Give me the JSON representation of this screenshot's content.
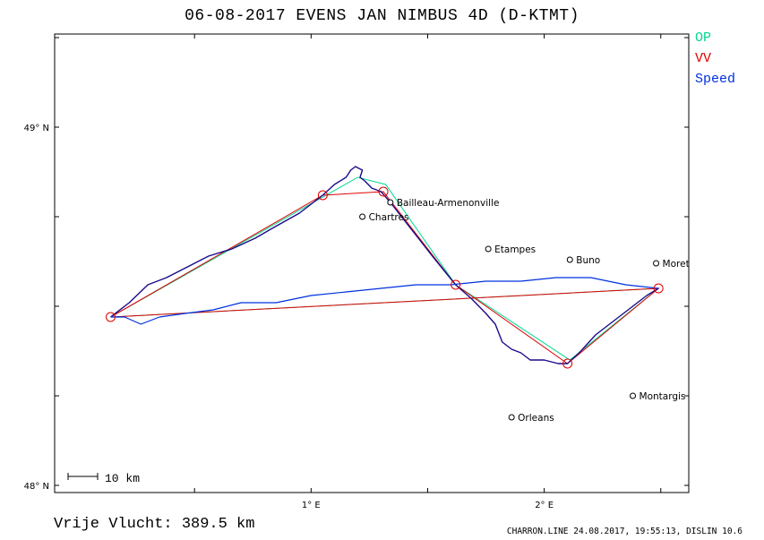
{
  "header": {
    "title": "06-08-2017   EVENS JAN   NIMBUS 4D (D-KTMT)"
  },
  "footer": {
    "distance": "Vrije Vlucht:  389.5 km",
    "credit": "CHARRON.LINE 24.08.2017, 19:55:13, DISLIN 10.6"
  },
  "colors": {
    "op": "#00d890",
    "vv": "#e00000",
    "speed": "#0030e0",
    "track": "#1a0a8a"
  },
  "chart_data": {
    "type": "map",
    "legend": [
      {
        "name": "OP",
        "color": "#00d890"
      },
      {
        "name": "VV",
        "color": "#e00000"
      },
      {
        "name": "Speed",
        "color": "#0030e0"
      }
    ],
    "x_ticks": [
      {
        "value": 1.0,
        "label": "1° E"
      },
      {
        "value": 2.0,
        "label": "2° E"
      }
    ],
    "y_ticks": [
      {
        "value": 49.0,
        "label": "49° N"
      },
      {
        "value": 48.0,
        "label": "48° N"
      }
    ],
    "xlim": [
      -0.1,
      2.62
    ],
    "ylim": [
      47.98,
      49.26
    ],
    "scale_bar": "10 km",
    "cities": [
      {
        "name": "Bailleau-Armenonville",
        "lon": 1.34,
        "lat": 48.79
      },
      {
        "name": "Chartres",
        "lon": 1.22,
        "lat": 48.75
      },
      {
        "name": "Etampes",
        "lon": 1.76,
        "lat": 48.66
      },
      {
        "name": "Buno",
        "lon": 2.11,
        "lat": 48.63
      },
      {
        "name": "Moret",
        "lon": 2.48,
        "lat": 48.62
      },
      {
        "name": "Montargis",
        "lon": 2.38,
        "lat": 48.25
      },
      {
        "name": "Orleans",
        "lon": 1.86,
        "lat": 48.19
      }
    ],
    "vv_turnpoints": [
      {
        "lon": 0.14,
        "lat": 48.47
      },
      {
        "lon": 1.05,
        "lat": 48.81
      },
      {
        "lon": 1.31,
        "lat": 48.82
      },
      {
        "lon": 1.62,
        "lat": 48.56
      },
      {
        "lon": 2.1,
        "lat": 48.34
      },
      {
        "lon": 2.49,
        "lat": 48.55
      },
      {
        "lon": 0.14,
        "lat": 48.47
      }
    ],
    "op_route": [
      {
        "lon": 0.14,
        "lat": 48.47
      },
      {
        "lon": 1.2,
        "lat": 48.86
      },
      {
        "lon": 1.32,
        "lat": 48.84
      },
      {
        "lon": 1.62,
        "lat": 48.56
      },
      {
        "lon": 2.11,
        "lat": 48.35
      },
      {
        "lon": 2.49,
        "lat": 48.55
      },
      {
        "lon": 0.14,
        "lat": 48.47
      }
    ],
    "track": [
      {
        "lon": 0.14,
        "lat": 48.47
      },
      {
        "lon": 0.22,
        "lat": 48.51
      },
      {
        "lon": 0.3,
        "lat": 48.56
      },
      {
        "lon": 0.38,
        "lat": 48.58
      },
      {
        "lon": 0.47,
        "lat": 48.61
      },
      {
        "lon": 0.56,
        "lat": 48.64
      },
      {
        "lon": 0.66,
        "lat": 48.66
      },
      {
        "lon": 0.76,
        "lat": 48.69
      },
      {
        "lon": 0.84,
        "lat": 48.72
      },
      {
        "lon": 0.95,
        "lat": 48.76
      },
      {
        "lon": 1.05,
        "lat": 48.81
      },
      {
        "lon": 1.1,
        "lat": 48.84
      },
      {
        "lon": 1.15,
        "lat": 48.86
      },
      {
        "lon": 1.17,
        "lat": 48.88
      },
      {
        "lon": 1.19,
        "lat": 48.89
      },
      {
        "lon": 1.22,
        "lat": 48.88
      },
      {
        "lon": 1.21,
        "lat": 48.86
      },
      {
        "lon": 1.23,
        "lat": 48.85
      },
      {
        "lon": 1.26,
        "lat": 48.83
      },
      {
        "lon": 1.3,
        "lat": 48.82
      },
      {
        "lon": 1.34,
        "lat": 48.79
      },
      {
        "lon": 1.4,
        "lat": 48.74
      },
      {
        "lon": 1.46,
        "lat": 48.69
      },
      {
        "lon": 1.52,
        "lat": 48.64
      },
      {
        "lon": 1.57,
        "lat": 48.6
      },
      {
        "lon": 1.62,
        "lat": 48.56
      },
      {
        "lon": 1.69,
        "lat": 48.52
      },
      {
        "lon": 1.75,
        "lat": 48.48
      },
      {
        "lon": 1.79,
        "lat": 48.45
      },
      {
        "lon": 1.82,
        "lat": 48.4
      },
      {
        "lon": 1.86,
        "lat": 48.38
      },
      {
        "lon": 1.9,
        "lat": 48.37
      },
      {
        "lon": 1.94,
        "lat": 48.35
      },
      {
        "lon": 2.0,
        "lat": 48.35
      },
      {
        "lon": 2.06,
        "lat": 48.34
      },
      {
        "lon": 2.1,
        "lat": 48.34
      },
      {
        "lon": 2.15,
        "lat": 48.37
      },
      {
        "lon": 2.22,
        "lat": 48.42
      },
      {
        "lon": 2.3,
        "lat": 48.46
      },
      {
        "lon": 2.38,
        "lat": 48.5
      },
      {
        "lon": 2.44,
        "lat": 48.53
      },
      {
        "lon": 2.49,
        "lat": 48.55
      },
      {
        "lon": 2.35,
        "lat": 48.56
      },
      {
        "lon": 2.2,
        "lat": 48.58
      },
      {
        "lon": 2.05,
        "lat": 48.58
      },
      {
        "lon": 1.9,
        "lat": 48.57
      },
      {
        "lon": 1.75,
        "lat": 48.57
      },
      {
        "lon": 1.6,
        "lat": 48.56
      },
      {
        "lon": 1.45,
        "lat": 48.56
      },
      {
        "lon": 1.3,
        "lat": 48.55
      },
      {
        "lon": 1.15,
        "lat": 48.54
      },
      {
        "lon": 1.0,
        "lat": 48.53
      },
      {
        "lon": 0.85,
        "lat": 48.51
      },
      {
        "lon": 0.7,
        "lat": 48.51
      },
      {
        "lon": 0.58,
        "lat": 48.49
      },
      {
        "lon": 0.46,
        "lat": 48.48
      },
      {
        "lon": 0.35,
        "lat": 48.47
      },
      {
        "lon": 0.27,
        "lat": 48.45
      },
      {
        "lon": 0.2,
        "lat": 48.47
      },
      {
        "lon": 0.14,
        "lat": 48.47
      }
    ]
  }
}
